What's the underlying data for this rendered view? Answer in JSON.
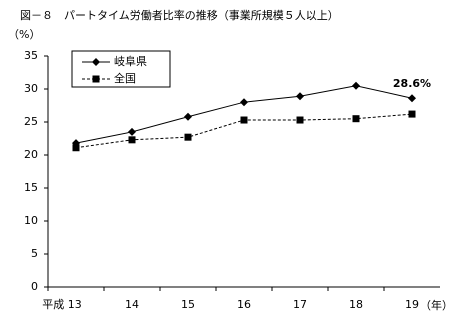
{
  "chart_data": {
    "type": "line",
    "title": "図－８　パートタイム労働者比率の推移（事業所規模５人以上）",
    "y_label": "（%）",
    "x_label": "（年）",
    "categories": [
      "平成 13",
      "14",
      "15",
      "16",
      "17",
      "18",
      "19"
    ],
    "series": [
      {
        "name": "岐阜県",
        "color": "#000000",
        "marker": "diamond",
        "dash": false,
        "values": [
          21.8,
          23.5,
          25.8,
          28.0,
          28.9,
          30.5,
          28.6
        ],
        "value_labels": [
          null,
          null,
          null,
          null,
          null,
          null,
          "28.6%"
        ]
      },
      {
        "name": "全国",
        "color": "#000000",
        "marker": "square",
        "dash": true,
        "values": [
          21.1,
          22.3,
          22.7,
          25.3,
          25.3,
          25.5,
          26.2
        ]
      }
    ],
    "ylim": [
      0,
      35
    ],
    "yticks": [
      0,
      5,
      10,
      15,
      20,
      25,
      30,
      35
    ],
    "grid": false,
    "legend": "upper left"
  }
}
